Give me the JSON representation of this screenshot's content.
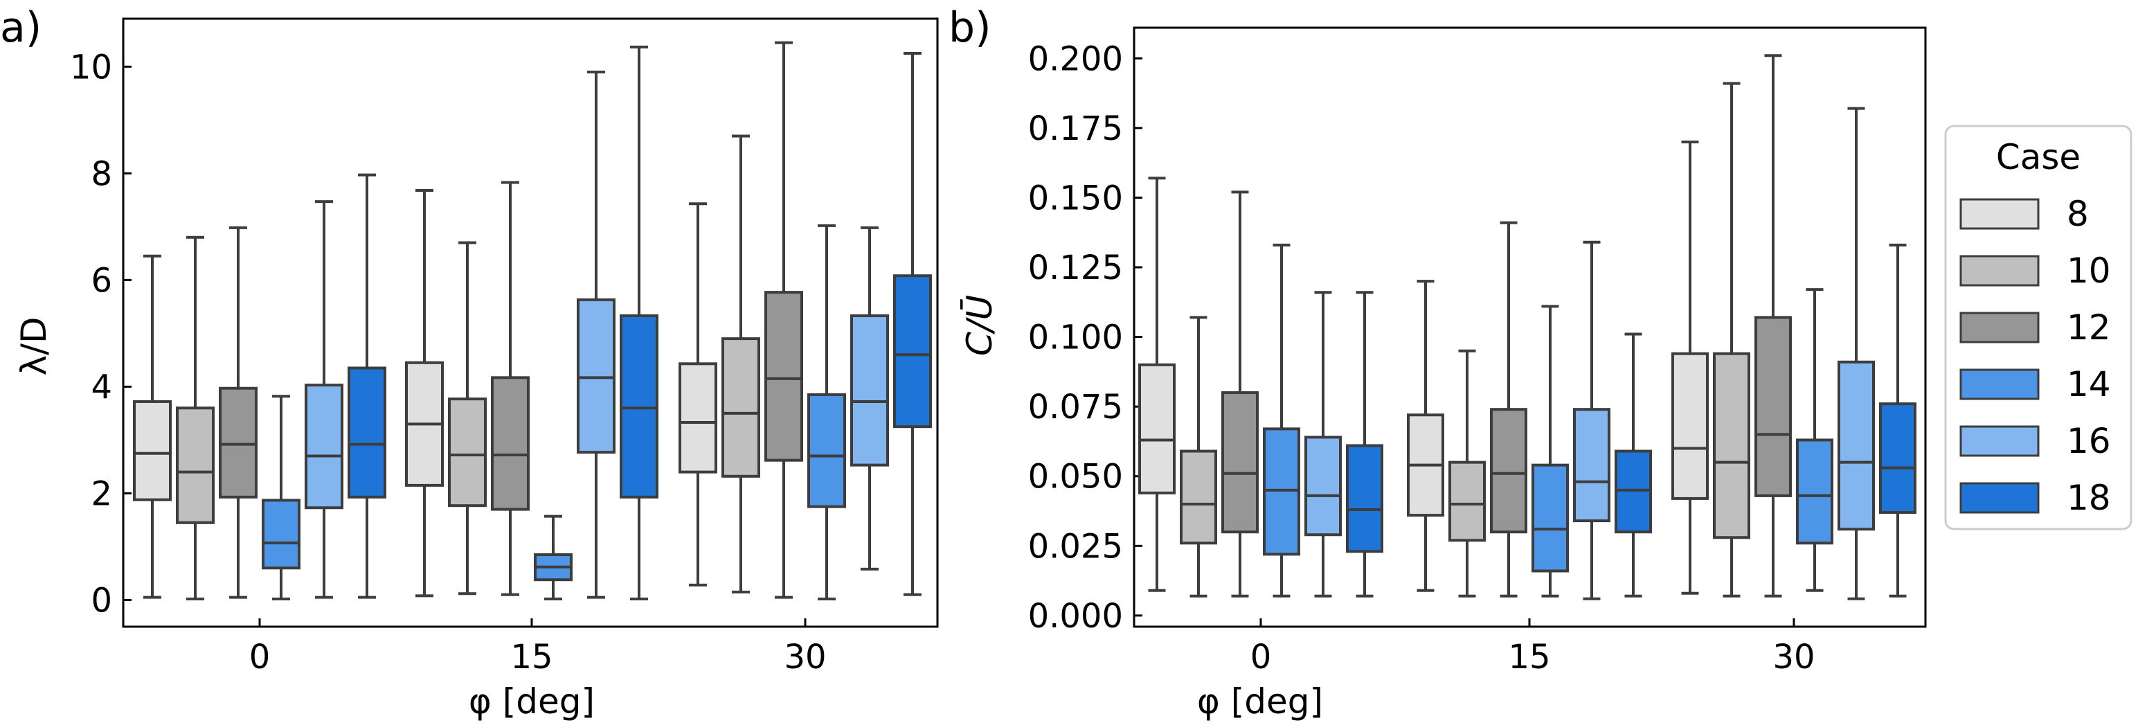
{
  "chart_data": [
    {
      "panel": "a)",
      "type": "box",
      "ylabel": "λ/D",
      "xlabel": "φ [deg]",
      "ylim": [
        -0.5,
        10.9
      ],
      "yticks": [
        0,
        2,
        4,
        6,
        8,
        10
      ],
      "grid": false,
      "categories": [
        "0",
        "15",
        "30"
      ],
      "series": [
        {
          "name": "8",
          "color": "#e0e0e0",
          "boxes": [
            {
              "min": 0.05,
              "q1": 1.88,
              "median": 2.75,
              "q3": 3.72,
              "max": 6.45
            },
            {
              "min": 0.08,
              "q1": 2.15,
              "median": 3.3,
              "q3": 4.45,
              "max": 7.68
            },
            {
              "min": 0.28,
              "q1": 2.4,
              "median": 3.33,
              "q3": 4.43,
              "max": 7.43
            }
          ]
        },
        {
          "name": "10",
          "color": "#bfbfbf",
          "boxes": [
            {
              "min": 0.02,
              "q1": 1.45,
              "median": 2.4,
              "q3": 3.6,
              "max": 6.8
            },
            {
              "min": 0.12,
              "q1": 1.77,
              "median": 2.72,
              "q3": 3.77,
              "max": 6.7
            },
            {
              "min": 0.15,
              "q1": 2.32,
              "median": 3.5,
              "q3": 4.9,
              "max": 8.7
            }
          ]
        },
        {
          "name": "12",
          "color": "#969696",
          "boxes": [
            {
              "min": 0.05,
              "q1": 1.93,
              "median": 2.92,
              "q3": 3.97,
              "max": 6.98
            },
            {
              "min": 0.1,
              "q1": 1.7,
              "median": 2.72,
              "q3": 4.17,
              "max": 7.83
            },
            {
              "min": 0.05,
              "q1": 2.62,
              "median": 4.15,
              "q3": 5.77,
              "max": 10.45
            }
          ]
        },
        {
          "name": "14",
          "color": "#4d95e6",
          "boxes": [
            {
              "min": 0.02,
              "q1": 0.6,
              "median": 1.07,
              "q3": 1.87,
              "max": 3.82
            },
            {
              "min": 0.02,
              "q1": 0.38,
              "median": 0.62,
              "q3": 0.85,
              "max": 1.57
            },
            {
              "min": 0.02,
              "q1": 1.75,
              "median": 2.7,
              "q3": 3.85,
              "max": 7.02
            }
          ]
        },
        {
          "name": "16",
          "color": "#83b6ef",
          "boxes": [
            {
              "min": 0.05,
              "q1": 1.73,
              "median": 2.7,
              "q3": 4.03,
              "max": 7.47
            },
            {
              "min": 0.05,
              "q1": 2.77,
              "median": 4.17,
              "q3": 5.63,
              "max": 9.9
            },
            {
              "min": 0.58,
              "q1": 2.53,
              "median": 3.72,
              "q3": 5.33,
              "max": 6.98
            }
          ]
        },
        {
          "name": "18",
          "color": "#1f74d8",
          "boxes": [
            {
              "min": 0.05,
              "q1": 1.93,
              "median": 2.92,
              "q3": 4.35,
              "max": 7.97
            },
            {
              "min": 0.02,
              "q1": 1.93,
              "median": 3.6,
              "q3": 5.33,
              "max": 10.37
            },
            {
              "min": 0.1,
              "q1": 3.25,
              "median": 4.6,
              "q3": 6.08,
              "max": 10.25
            }
          ]
        }
      ]
    },
    {
      "panel": "b)",
      "type": "box",
      "ylabel": "C/Ū",
      "xlabel": "φ [deg]",
      "ylim": [
        -0.004,
        0.211
      ],
      "yticks": [
        0.0,
        0.025,
        0.05,
        0.075,
        0.1,
        0.125,
        0.15,
        0.175,
        0.2
      ],
      "grid": false,
      "categories": [
        "0",
        "15",
        "30"
      ],
      "series": [
        {
          "name": "8",
          "color": "#e0e0e0",
          "boxes": [
            {
              "min": 0.009,
              "q1": 0.044,
              "median": 0.063,
              "q3": 0.09,
              "max": 0.157
            },
            {
              "min": 0.009,
              "q1": 0.036,
              "median": 0.054,
              "q3": 0.072,
              "max": 0.12
            },
            {
              "min": 0.008,
              "q1": 0.042,
              "median": 0.06,
              "q3": 0.094,
              "max": 0.17
            }
          ]
        },
        {
          "name": "10",
          "color": "#bfbfbf",
          "boxes": [
            {
              "min": 0.007,
              "q1": 0.026,
              "median": 0.04,
              "q3": 0.059,
              "max": 0.107
            },
            {
              "min": 0.007,
              "q1": 0.027,
              "median": 0.04,
              "q3": 0.055,
              "max": 0.095
            },
            {
              "min": 0.007,
              "q1": 0.028,
              "median": 0.055,
              "q3": 0.094,
              "max": 0.191
            }
          ]
        },
        {
          "name": "12",
          "color": "#969696",
          "boxes": [
            {
              "min": 0.007,
              "q1": 0.03,
              "median": 0.051,
              "q3": 0.08,
              "max": 0.152
            },
            {
              "min": 0.007,
              "q1": 0.03,
              "median": 0.051,
              "q3": 0.074,
              "max": 0.141
            },
            {
              "min": 0.007,
              "q1": 0.043,
              "median": 0.065,
              "q3": 0.107,
              "max": 0.201
            }
          ]
        },
        {
          "name": "14",
          "color": "#4d95e6",
          "boxes": [
            {
              "min": 0.007,
              "q1": 0.022,
              "median": 0.045,
              "q3": 0.067,
              "max": 0.133
            },
            {
              "min": 0.007,
              "q1": 0.016,
              "median": 0.031,
              "q3": 0.054,
              "max": 0.111
            },
            {
              "min": 0.009,
              "q1": 0.026,
              "median": 0.043,
              "q3": 0.063,
              "max": 0.117
            }
          ]
        },
        {
          "name": "16",
          "color": "#83b6ef",
          "boxes": [
            {
              "min": 0.007,
              "q1": 0.029,
              "median": 0.043,
              "q3": 0.064,
              "max": 0.116
            },
            {
              "min": 0.006,
              "q1": 0.034,
              "median": 0.048,
              "q3": 0.074,
              "max": 0.134
            },
            {
              "min": 0.006,
              "q1": 0.031,
              "median": 0.055,
              "q3": 0.091,
              "max": 0.182
            }
          ]
        },
        {
          "name": "18",
          "color": "#1f74d8",
          "boxes": [
            {
              "min": 0.007,
              "q1": 0.023,
              "median": 0.038,
              "q3": 0.061,
              "max": 0.116
            },
            {
              "min": 0.007,
              "q1": 0.03,
              "median": 0.045,
              "q3": 0.059,
              "max": 0.101
            },
            {
              "min": 0.007,
              "q1": 0.037,
              "median": 0.053,
              "q3": 0.076,
              "max": 0.133
            }
          ]
        }
      ]
    }
  ],
  "legend": {
    "title": "Case",
    "position": "right",
    "entries": [
      "8",
      "10",
      "12",
      "14",
      "16",
      "18"
    ]
  }
}
